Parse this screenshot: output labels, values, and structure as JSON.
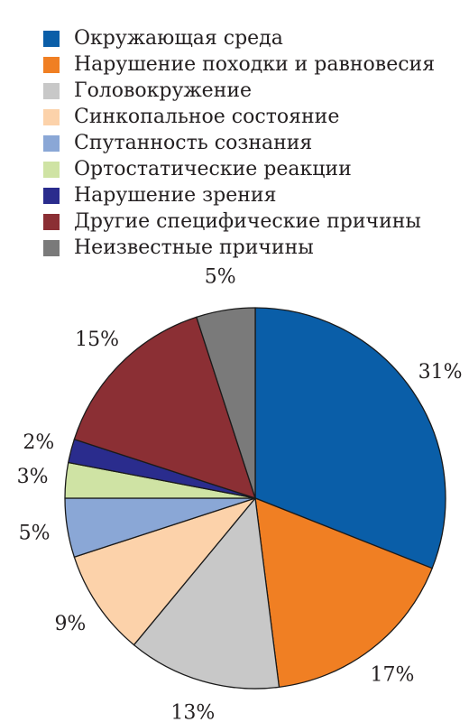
{
  "chart_data": {
    "type": "pie",
    "legend_placement": "top",
    "slices": [
      {
        "label": "Окружающая среда",
        "value": 31,
        "display": "31%",
        "color": "#0a5ea8"
      },
      {
        "label": "Нарушение походки и равновесия",
        "value": 17,
        "display": "17%",
        "color": "#f07f23"
      },
      {
        "label": "Головокружение",
        "value": 13,
        "display": "13%",
        "color": "#c8c8c8"
      },
      {
        "label": "Синкопальное состояние",
        "value": 9,
        "display": "9%",
        "color": "#fcd2aa"
      },
      {
        "label": "Спутанность сознания",
        "value": 5,
        "display": "5%",
        "color": "#8aa7d6"
      },
      {
        "label": "Ортостатические реакции",
        "value": 3,
        "display": "3%",
        "color": "#cfe3a4"
      },
      {
        "label": "Нарушение зрения",
        "value": 2,
        "display": "2%",
        "color": "#2a2c8d"
      },
      {
        "label": "Другие специфические причины",
        "value": 15,
        "display": "15%",
        "color": "#8b2f34"
      },
      {
        "label": "Неизвестные причины",
        "value": 5,
        "display": "5%",
        "color": "#7a7a7a"
      }
    ]
  }
}
